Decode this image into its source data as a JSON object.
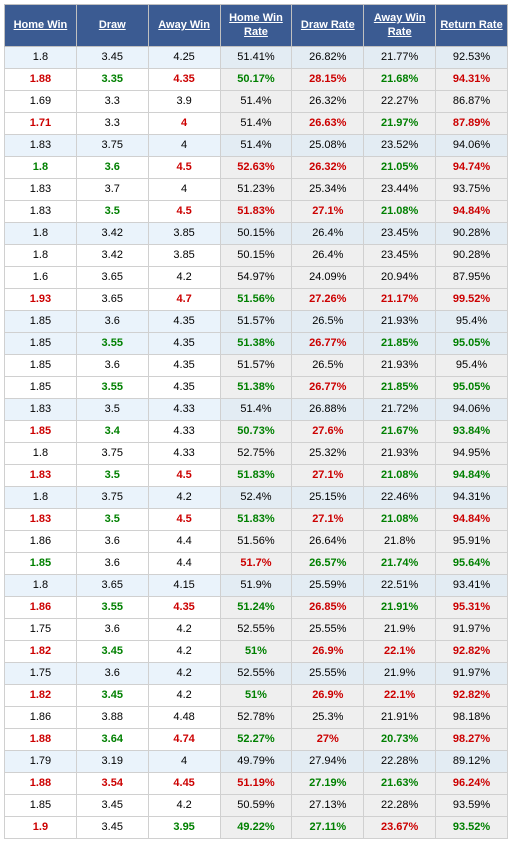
{
  "header": {
    "bg_color": "#3b5b92",
    "text_color": "#ffffff",
    "columns": [
      "Home Win",
      "Draw",
      "Away Win",
      "Home Win Rate",
      "Draw Rate",
      "Away Win Rate",
      "Return Rate"
    ]
  },
  "colors": {
    "row_bg": "#ffffff",
    "row_alt_bg": "#eaf3fb",
    "rate_bg": "#efefef",
    "rate_alt_bg": "#e3ecf3",
    "border": "#d0d0d0",
    "text_red": "#cc0000",
    "text_green": "#008000",
    "text_black": "#000000"
  },
  "column_types": [
    "odds",
    "odds",
    "odds",
    "rate",
    "rate",
    "rate",
    "rate"
  ],
  "rows": [
    {
      "alt": true,
      "cells": [
        {
          "v": "1.8",
          "c": "black"
        },
        {
          "v": "3.45",
          "c": "black"
        },
        {
          "v": "4.25",
          "c": "black"
        },
        {
          "v": "51.41%",
          "c": "black"
        },
        {
          "v": "26.82%",
          "c": "black"
        },
        {
          "v": "21.77%",
          "c": "black"
        },
        {
          "v": "92.53%",
          "c": "black"
        }
      ]
    },
    {
      "alt": false,
      "cells": [
        {
          "v": "1.88",
          "c": "red"
        },
        {
          "v": "3.35",
          "c": "green"
        },
        {
          "v": "4.35",
          "c": "red"
        },
        {
          "v": "50.17%",
          "c": "green"
        },
        {
          "v": "28.15%",
          "c": "red"
        },
        {
          "v": "21.68%",
          "c": "green"
        },
        {
          "v": "94.31%",
          "c": "red"
        }
      ]
    },
    {
      "alt": false,
      "cells": [
        {
          "v": "1.69",
          "c": "black"
        },
        {
          "v": "3.3",
          "c": "black"
        },
        {
          "v": "3.9",
          "c": "black"
        },
        {
          "v": "51.4%",
          "c": "black"
        },
        {
          "v": "26.32%",
          "c": "black"
        },
        {
          "v": "22.27%",
          "c": "black"
        },
        {
          "v": "86.87%",
          "c": "black"
        }
      ]
    },
    {
      "alt": false,
      "cells": [
        {
          "v": "1.71",
          "c": "red"
        },
        {
          "v": "3.3",
          "c": "black"
        },
        {
          "v": "4",
          "c": "red"
        },
        {
          "v": "51.4%",
          "c": "black"
        },
        {
          "v": "26.63%",
          "c": "red"
        },
        {
          "v": "21.97%",
          "c": "green"
        },
        {
          "v": "87.89%",
          "c": "red"
        }
      ]
    },
    {
      "alt": true,
      "cells": [
        {
          "v": "1.83",
          "c": "black"
        },
        {
          "v": "3.75",
          "c": "black"
        },
        {
          "v": "4",
          "c": "black"
        },
        {
          "v": "51.4%",
          "c": "black"
        },
        {
          "v": "25.08%",
          "c": "black"
        },
        {
          "v": "23.52%",
          "c": "black"
        },
        {
          "v": "94.06%",
          "c": "black"
        }
      ]
    },
    {
      "alt": false,
      "cells": [
        {
          "v": "1.8",
          "c": "green"
        },
        {
          "v": "3.6",
          "c": "green"
        },
        {
          "v": "4.5",
          "c": "red"
        },
        {
          "v": "52.63%",
          "c": "red"
        },
        {
          "v": "26.32%",
          "c": "red"
        },
        {
          "v": "21.05%",
          "c": "green"
        },
        {
          "v": "94.74%",
          "c": "red"
        }
      ]
    },
    {
      "alt": false,
      "cells": [
        {
          "v": "1.83",
          "c": "black"
        },
        {
          "v": "3.7",
          "c": "black"
        },
        {
          "v": "4",
          "c": "black"
        },
        {
          "v": "51.23%",
          "c": "black"
        },
        {
          "v": "25.34%",
          "c": "black"
        },
        {
          "v": "23.44%",
          "c": "black"
        },
        {
          "v": "93.75%",
          "c": "black"
        }
      ]
    },
    {
      "alt": false,
      "cells": [
        {
          "v": "1.83",
          "c": "black"
        },
        {
          "v": "3.5",
          "c": "green"
        },
        {
          "v": "4.5",
          "c": "red"
        },
        {
          "v": "51.83%",
          "c": "red"
        },
        {
          "v": "27.1%",
          "c": "red"
        },
        {
          "v": "21.08%",
          "c": "green"
        },
        {
          "v": "94.84%",
          "c": "red"
        }
      ]
    },
    {
      "alt": true,
      "cells": [
        {
          "v": "1.8",
          "c": "black"
        },
        {
          "v": "3.42",
          "c": "black"
        },
        {
          "v": "3.85",
          "c": "black"
        },
        {
          "v": "50.15%",
          "c": "black"
        },
        {
          "v": "26.4%",
          "c": "black"
        },
        {
          "v": "23.45%",
          "c": "black"
        },
        {
          "v": "90.28%",
          "c": "black"
        }
      ]
    },
    {
      "alt": false,
      "cells": [
        {
          "v": "1.8",
          "c": "black"
        },
        {
          "v": "3.42",
          "c": "black"
        },
        {
          "v": "3.85",
          "c": "black"
        },
        {
          "v": "50.15%",
          "c": "black"
        },
        {
          "v": "26.4%",
          "c": "black"
        },
        {
          "v": "23.45%",
          "c": "black"
        },
        {
          "v": "90.28%",
          "c": "black"
        }
      ]
    },
    {
      "alt": false,
      "cells": [
        {
          "v": "1.6",
          "c": "black"
        },
        {
          "v": "3.65",
          "c": "black"
        },
        {
          "v": "4.2",
          "c": "black"
        },
        {
          "v": "54.97%",
          "c": "black"
        },
        {
          "v": "24.09%",
          "c": "black"
        },
        {
          "v": "20.94%",
          "c": "black"
        },
        {
          "v": "87.95%",
          "c": "black"
        }
      ]
    },
    {
      "alt": false,
      "cells": [
        {
          "v": "1.93",
          "c": "red"
        },
        {
          "v": "3.65",
          "c": "black"
        },
        {
          "v": "4.7",
          "c": "red"
        },
        {
          "v": "51.56%",
          "c": "green"
        },
        {
          "v": "27.26%",
          "c": "red"
        },
        {
          "v": "21.17%",
          "c": "red"
        },
        {
          "v": "99.52%",
          "c": "red"
        }
      ]
    },
    {
      "alt": true,
      "cells": [
        {
          "v": "1.85",
          "c": "black"
        },
        {
          "v": "3.6",
          "c": "black"
        },
        {
          "v": "4.35",
          "c": "black"
        },
        {
          "v": "51.57%",
          "c": "black"
        },
        {
          "v": "26.5%",
          "c": "black"
        },
        {
          "v": "21.93%",
          "c": "black"
        },
        {
          "v": "95.4%",
          "c": "black"
        }
      ]
    },
    {
      "alt": true,
      "cells": [
        {
          "v": "1.85",
          "c": "black"
        },
        {
          "v": "3.55",
          "c": "green"
        },
        {
          "v": "4.35",
          "c": "black"
        },
        {
          "v": "51.38%",
          "c": "green"
        },
        {
          "v": "26.77%",
          "c": "red"
        },
        {
          "v": "21.85%",
          "c": "green"
        },
        {
          "v": "95.05%",
          "c": "green"
        }
      ]
    },
    {
      "alt": false,
      "cells": [
        {
          "v": "1.85",
          "c": "black"
        },
        {
          "v": "3.6",
          "c": "black"
        },
        {
          "v": "4.35",
          "c": "black"
        },
        {
          "v": "51.57%",
          "c": "black"
        },
        {
          "v": "26.5%",
          "c": "black"
        },
        {
          "v": "21.93%",
          "c": "black"
        },
        {
          "v": "95.4%",
          "c": "black"
        }
      ]
    },
    {
      "alt": false,
      "cells": [
        {
          "v": "1.85",
          "c": "black"
        },
        {
          "v": "3.55",
          "c": "green"
        },
        {
          "v": "4.35",
          "c": "black"
        },
        {
          "v": "51.38%",
          "c": "green"
        },
        {
          "v": "26.77%",
          "c": "red"
        },
        {
          "v": "21.85%",
          "c": "green"
        },
        {
          "v": "95.05%",
          "c": "green"
        }
      ]
    },
    {
      "alt": true,
      "cells": [
        {
          "v": "1.83",
          "c": "black"
        },
        {
          "v": "3.5",
          "c": "black"
        },
        {
          "v": "4.33",
          "c": "black"
        },
        {
          "v": "51.4%",
          "c": "black"
        },
        {
          "v": "26.88%",
          "c": "black"
        },
        {
          "v": "21.72%",
          "c": "black"
        },
        {
          "v": "94.06%",
          "c": "black"
        }
      ]
    },
    {
      "alt": false,
      "cells": [
        {
          "v": "1.85",
          "c": "red"
        },
        {
          "v": "3.4",
          "c": "green"
        },
        {
          "v": "4.33",
          "c": "black"
        },
        {
          "v": "50.73%",
          "c": "green"
        },
        {
          "v": "27.6%",
          "c": "red"
        },
        {
          "v": "21.67%",
          "c": "green"
        },
        {
          "v": "93.84%",
          "c": "green"
        }
      ]
    },
    {
      "alt": false,
      "cells": [
        {
          "v": "1.8",
          "c": "black"
        },
        {
          "v": "3.75",
          "c": "black"
        },
        {
          "v": "4.33",
          "c": "black"
        },
        {
          "v": "52.75%",
          "c": "black"
        },
        {
          "v": "25.32%",
          "c": "black"
        },
        {
          "v": "21.93%",
          "c": "black"
        },
        {
          "v": "94.95%",
          "c": "black"
        }
      ]
    },
    {
      "alt": false,
      "cells": [
        {
          "v": "1.83",
          "c": "red"
        },
        {
          "v": "3.5",
          "c": "green"
        },
        {
          "v": "4.5",
          "c": "red"
        },
        {
          "v": "51.83%",
          "c": "green"
        },
        {
          "v": "27.1%",
          "c": "red"
        },
        {
          "v": "21.08%",
          "c": "green"
        },
        {
          "v": "94.84%",
          "c": "green"
        }
      ]
    },
    {
      "alt": true,
      "cells": [
        {
          "v": "1.8",
          "c": "black"
        },
        {
          "v": "3.75",
          "c": "black"
        },
        {
          "v": "4.2",
          "c": "black"
        },
        {
          "v": "52.4%",
          "c": "black"
        },
        {
          "v": "25.15%",
          "c": "black"
        },
        {
          "v": "22.46%",
          "c": "black"
        },
        {
          "v": "94.31%",
          "c": "black"
        }
      ]
    },
    {
      "alt": false,
      "cells": [
        {
          "v": "1.83",
          "c": "red"
        },
        {
          "v": "3.5",
          "c": "green"
        },
        {
          "v": "4.5",
          "c": "red"
        },
        {
          "v": "51.83%",
          "c": "green"
        },
        {
          "v": "27.1%",
          "c": "red"
        },
        {
          "v": "21.08%",
          "c": "green"
        },
        {
          "v": "94.84%",
          "c": "red"
        }
      ]
    },
    {
      "alt": false,
      "cells": [
        {
          "v": "1.86",
          "c": "black"
        },
        {
          "v": "3.6",
          "c": "black"
        },
        {
          "v": "4.4",
          "c": "black"
        },
        {
          "v": "51.56%",
          "c": "black"
        },
        {
          "v": "26.64%",
          "c": "black"
        },
        {
          "v": "21.8%",
          "c": "black"
        },
        {
          "v": "95.91%",
          "c": "black"
        }
      ]
    },
    {
      "alt": false,
      "cells": [
        {
          "v": "1.85",
          "c": "green"
        },
        {
          "v": "3.6",
          "c": "black"
        },
        {
          "v": "4.4",
          "c": "black"
        },
        {
          "v": "51.7%",
          "c": "red"
        },
        {
          "v": "26.57%",
          "c": "green"
        },
        {
          "v": "21.74%",
          "c": "green"
        },
        {
          "v": "95.64%",
          "c": "green"
        }
      ]
    },
    {
      "alt": true,
      "cells": [
        {
          "v": "1.8",
          "c": "black"
        },
        {
          "v": "3.65",
          "c": "black"
        },
        {
          "v": "4.15",
          "c": "black"
        },
        {
          "v": "51.9%",
          "c": "black"
        },
        {
          "v": "25.59%",
          "c": "black"
        },
        {
          "v": "22.51%",
          "c": "black"
        },
        {
          "v": "93.41%",
          "c": "black"
        }
      ]
    },
    {
      "alt": false,
      "cells": [
        {
          "v": "1.86",
          "c": "red"
        },
        {
          "v": "3.55",
          "c": "green"
        },
        {
          "v": "4.35",
          "c": "red"
        },
        {
          "v": "51.24%",
          "c": "green"
        },
        {
          "v": "26.85%",
          "c": "red"
        },
        {
          "v": "21.91%",
          "c": "green"
        },
        {
          "v": "95.31%",
          "c": "red"
        }
      ]
    },
    {
      "alt": false,
      "cells": [
        {
          "v": "1.75",
          "c": "black"
        },
        {
          "v": "3.6",
          "c": "black"
        },
        {
          "v": "4.2",
          "c": "black"
        },
        {
          "v": "52.55%",
          "c": "black"
        },
        {
          "v": "25.55%",
          "c": "black"
        },
        {
          "v": "21.9%",
          "c": "black"
        },
        {
          "v": "91.97%",
          "c": "black"
        }
      ]
    },
    {
      "alt": false,
      "cells": [
        {
          "v": "1.82",
          "c": "red"
        },
        {
          "v": "3.45",
          "c": "green"
        },
        {
          "v": "4.2",
          "c": "black"
        },
        {
          "v": "51%",
          "c": "green"
        },
        {
          "v": "26.9%",
          "c": "red"
        },
        {
          "v": "22.1%",
          "c": "red"
        },
        {
          "v": "92.82%",
          "c": "red"
        }
      ]
    },
    {
      "alt": true,
      "cells": [
        {
          "v": "1.75",
          "c": "black"
        },
        {
          "v": "3.6",
          "c": "black"
        },
        {
          "v": "4.2",
          "c": "black"
        },
        {
          "v": "52.55%",
          "c": "black"
        },
        {
          "v": "25.55%",
          "c": "black"
        },
        {
          "v": "21.9%",
          "c": "black"
        },
        {
          "v": "91.97%",
          "c": "black"
        }
      ]
    },
    {
      "alt": false,
      "cells": [
        {
          "v": "1.82",
          "c": "red"
        },
        {
          "v": "3.45",
          "c": "green"
        },
        {
          "v": "4.2",
          "c": "black"
        },
        {
          "v": "51%",
          "c": "green"
        },
        {
          "v": "26.9%",
          "c": "red"
        },
        {
          "v": "22.1%",
          "c": "red"
        },
        {
          "v": "92.82%",
          "c": "red"
        }
      ]
    },
    {
      "alt": false,
      "cells": [
        {
          "v": "1.86",
          "c": "black"
        },
        {
          "v": "3.88",
          "c": "black"
        },
        {
          "v": "4.48",
          "c": "black"
        },
        {
          "v": "52.78%",
          "c": "black"
        },
        {
          "v": "25.3%",
          "c": "black"
        },
        {
          "v": "21.91%",
          "c": "black"
        },
        {
          "v": "98.18%",
          "c": "black"
        }
      ]
    },
    {
      "alt": false,
      "cells": [
        {
          "v": "1.88",
          "c": "red"
        },
        {
          "v": "3.64",
          "c": "green"
        },
        {
          "v": "4.74",
          "c": "red"
        },
        {
          "v": "52.27%",
          "c": "green"
        },
        {
          "v": "27%",
          "c": "red"
        },
        {
          "v": "20.73%",
          "c": "green"
        },
        {
          "v": "98.27%",
          "c": "red"
        }
      ]
    },
    {
      "alt": true,
      "cells": [
        {
          "v": "1.79",
          "c": "black"
        },
        {
          "v": "3.19",
          "c": "black"
        },
        {
          "v": "4",
          "c": "black"
        },
        {
          "v": "49.79%",
          "c": "black"
        },
        {
          "v": "27.94%",
          "c": "black"
        },
        {
          "v": "22.28%",
          "c": "black"
        },
        {
          "v": "89.12%",
          "c": "black"
        }
      ]
    },
    {
      "alt": false,
      "cells": [
        {
          "v": "1.88",
          "c": "red"
        },
        {
          "v": "3.54",
          "c": "red"
        },
        {
          "v": "4.45",
          "c": "red"
        },
        {
          "v": "51.19%",
          "c": "red"
        },
        {
          "v": "27.19%",
          "c": "green"
        },
        {
          "v": "21.63%",
          "c": "green"
        },
        {
          "v": "96.24%",
          "c": "red"
        }
      ]
    },
    {
      "alt": false,
      "cells": [
        {
          "v": "1.85",
          "c": "black"
        },
        {
          "v": "3.45",
          "c": "black"
        },
        {
          "v": "4.2",
          "c": "black"
        },
        {
          "v": "50.59%",
          "c": "black"
        },
        {
          "v": "27.13%",
          "c": "black"
        },
        {
          "v": "22.28%",
          "c": "black"
        },
        {
          "v": "93.59%",
          "c": "black"
        }
      ]
    },
    {
      "alt": false,
      "cells": [
        {
          "v": "1.9",
          "c": "red"
        },
        {
          "v": "3.45",
          "c": "black"
        },
        {
          "v": "3.95",
          "c": "green"
        },
        {
          "v": "49.22%",
          "c": "green"
        },
        {
          "v": "27.11%",
          "c": "green"
        },
        {
          "v": "23.67%",
          "c": "red"
        },
        {
          "v": "93.52%",
          "c": "green"
        }
      ]
    }
  ]
}
